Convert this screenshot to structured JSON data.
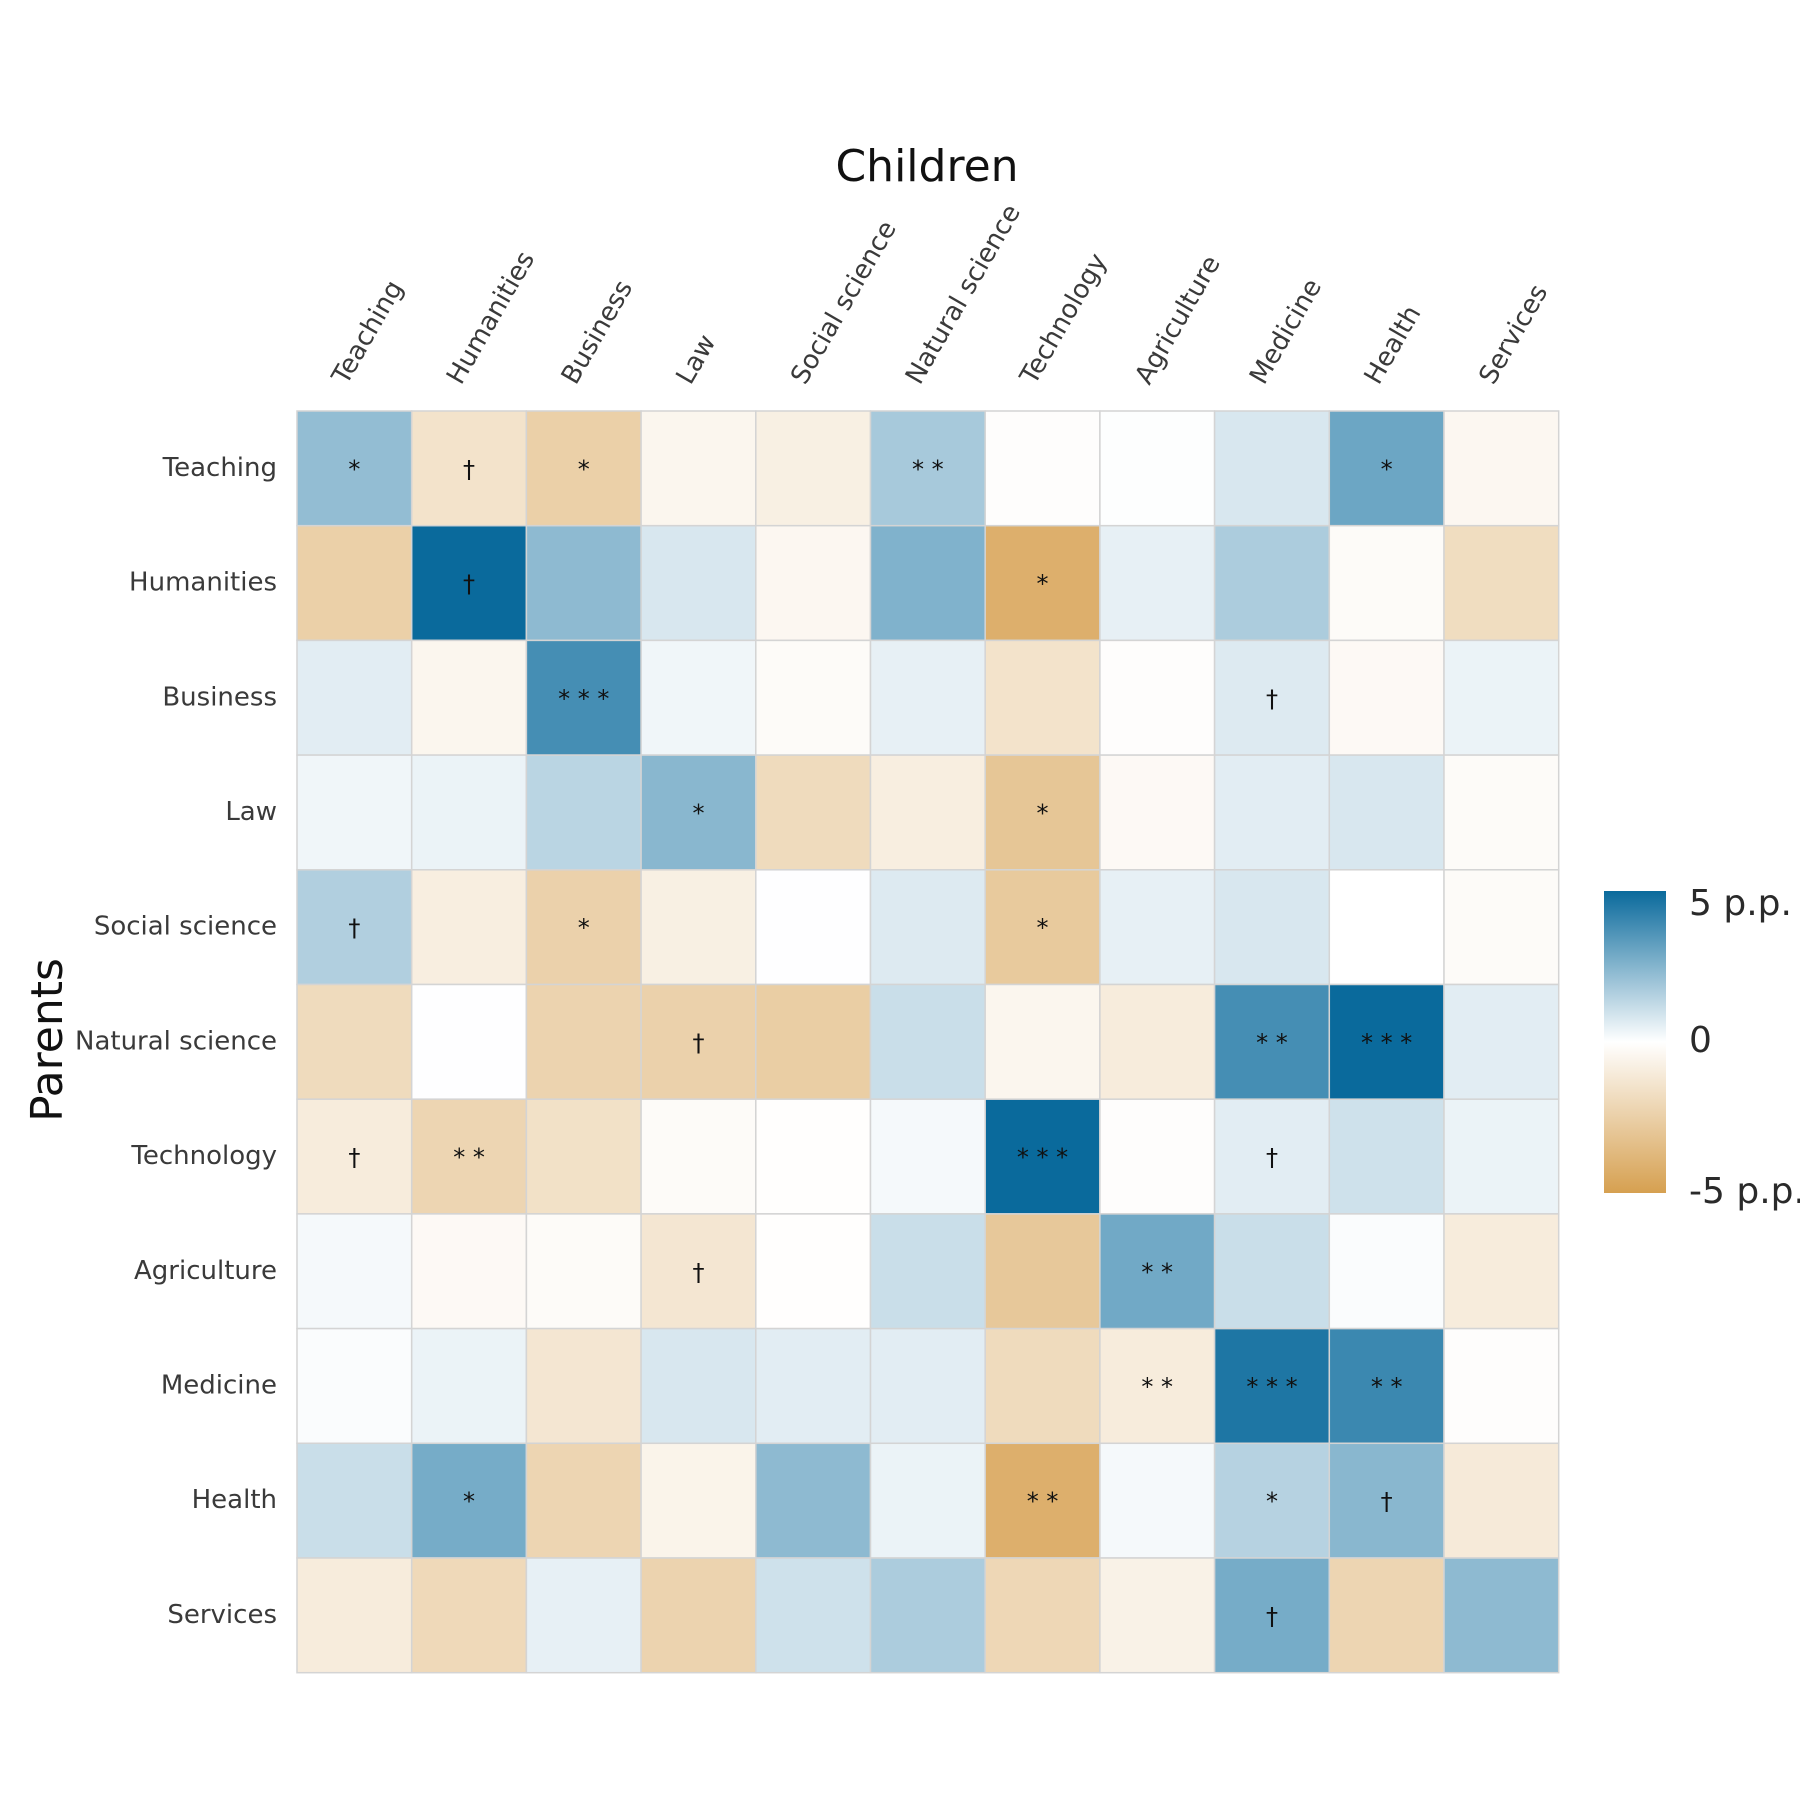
{
  "chart_data": {
    "type": "heatmap",
    "title": "",
    "xlabel": "Children",
    "ylabel": "Parents",
    "x_categories": [
      "Teaching",
      "Humanities",
      "Business",
      "Law",
      "Social science",
      "Natural science",
      "Technology",
      "Agriculture",
      "Medicine",
      "Health",
      "Services"
    ],
    "y_categories": [
      "Teaching",
      "Humanities",
      "Business",
      "Law",
      "Social science",
      "Natural science",
      "Technology",
      "Agriculture",
      "Medicine",
      "Health",
      "Services"
    ],
    "values": [
      [
        2.2,
        -1.5,
        -2.5,
        -0.5,
        -0.8,
        1.8,
        -0.1,
        0.05,
        0.8,
        3.0,
        -0.4
      ],
      [
        -2.5,
        5.0,
        2.3,
        0.8,
        -0.4,
        2.6,
        -4.2,
        0.5,
        1.7,
        -0.2,
        -1.8
      ],
      [
        0.6,
        -0.5,
        3.8,
        0.3,
        -0.2,
        0.5,
        -1.5,
        -0.1,
        0.7,
        -0.3,
        0.4
      ],
      [
        0.3,
        0.4,
        1.4,
        2.4,
        -1.9,
        -0.9,
        -3.0,
        -0.3,
        0.6,
        0.8,
        -0.2
      ],
      [
        1.6,
        -0.9,
        -2.4,
        -0.8,
        0.02,
        0.7,
        -2.8,
        0.5,
        0.8,
        0.0,
        -0.2
      ],
      [
        -1.9,
        0.02,
        -2.3,
        -2.4,
        -2.6,
        1.1,
        -0.5,
        -1.0,
        3.8,
        5.0,
        0.6
      ],
      [
        -1.0,
        -2.2,
        -1.6,
        -0.2,
        -0.05,
        0.2,
        5.0,
        -0.1,
        0.6,
        1.0,
        0.4
      ],
      [
        0.2,
        -0.3,
        -0.2,
        -1.3,
        -0.05,
        1.1,
        -2.9,
        2.9,
        1.1,
        0.1,
        -1.0
      ],
      [
        0.1,
        0.4,
        -1.3,
        0.8,
        0.6,
        0.6,
        -1.9,
        -1.0,
        4.6,
        4.0,
        -0.1
      ],
      [
        1.1,
        2.8,
        -2.2,
        -0.6,
        2.3,
        0.4,
        -4.2,
        0.2,
        1.5,
        2.4,
        -1.1
      ],
      [
        -1.0,
        -2.0,
        0.5,
        -2.3,
        1.0,
        1.7,
        -2.1,
        -0.7,
        2.8,
        -2.2,
        2.3
      ]
    ],
    "significance": [
      [
        "*",
        "†",
        "*",
        "",
        "",
        "* *",
        "",
        "",
        "",
        "*",
        ""
      ],
      [
        "",
        "†",
        "",
        "",
        "",
        "",
        "*",
        "",
        "",
        "",
        ""
      ],
      [
        "",
        "",
        "* * *",
        "",
        "",
        "",
        "",
        "",
        "†",
        "",
        ""
      ],
      [
        "",
        "",
        "",
        "*",
        "",
        "",
        "*",
        "",
        "",
        "",
        ""
      ],
      [
        "†",
        "",
        "*",
        "",
        "",
        "",
        "*",
        "",
        "",
        "",
        ""
      ],
      [
        "",
        "",
        "",
        "†",
        "",
        "",
        "",
        "",
        "* *",
        "* * *",
        ""
      ],
      [
        "†",
        "* *",
        "",
        "",
        "",
        "",
        "* * *",
        "",
        "†",
        "",
        ""
      ],
      [
        "",
        "",
        "",
        "†",
        "",
        "",
        "",
        "* *",
        "",
        "",
        ""
      ],
      [
        "",
        "",
        "",
        "",
        "",
        "",
        "",
        "* *",
        "* * *",
        "* *",
        ""
      ],
      [
        "",
        "*",
        "",
        "",
        "",
        "",
        "* *",
        "",
        "*",
        "†",
        ""
      ],
      [
        "",
        "",
        "",
        "",
        "",
        "",
        "",
        "",
        "†",
        "",
        ""
      ]
    ],
    "value_range": [
      -5,
      5
    ],
    "colorbar": {
      "position": "right",
      "max_label": "5 p.p.",
      "mid_label": "0",
      "min_label": "-5 p.p.",
      "low_color": "#D6A050",
      "mid_color": "#FFFFFF",
      "high_color": "#0A6A9C"
    }
  }
}
